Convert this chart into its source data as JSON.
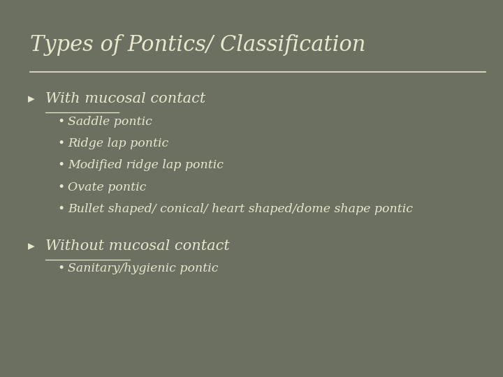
{
  "title": "Types of Pontics/ Classification",
  "bg_color": "#6b7060",
  "bg_outer_color": "#555a4a",
  "text_color": "#e8e8d0",
  "title_fontsize": 22,
  "sections": [
    {
      "heading": "With mucosal contact",
      "heading_fontsize": 15,
      "sub_items": [
        "Saddle pontic",
        "Ridge lap pontic",
        "Modified ridge lap pontic",
        "Ovate pontic",
        "Bullet shaped/ conical/ heart shaped/dome shape pontic"
      ],
      "sub_fontsize": 12.5
    },
    {
      "heading": "Without mucosal contact",
      "heading_fontsize": 15,
      "sub_items": [
        "Sanitary/hygienic pontic"
      ],
      "sub_fontsize": 12.5
    }
  ]
}
